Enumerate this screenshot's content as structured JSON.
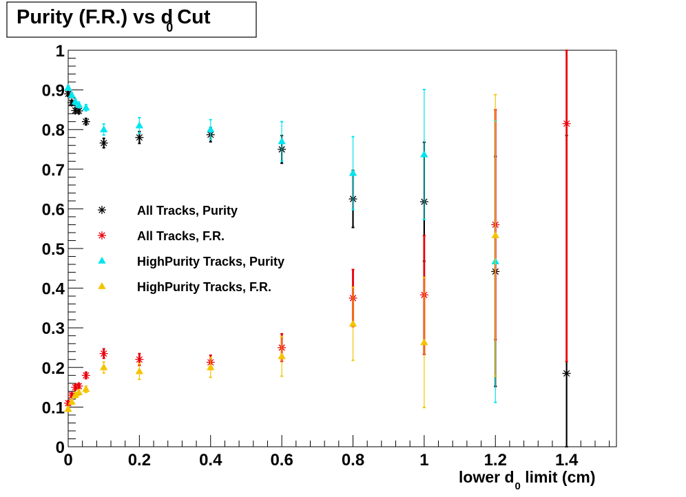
{
  "chart_data": {
    "type": "scatter",
    "title": {
      "main": "Purity (F.R.) vs d",
      "subscript": "0",
      "tail": "Cut"
    },
    "xlabel": {
      "main": "lower d",
      "subscript": "0",
      "tail": " limit (cm)"
    },
    "ylabel": "",
    "xlim": [
      0,
      1.54
    ],
    "ylim": [
      0,
      1
    ],
    "x_major_ticks": [
      0,
      0.2,
      0.4,
      0.6,
      0.8,
      1,
      1.2,
      1.4
    ],
    "x_tick_labels": [
      "0",
      "0.2",
      "0.4",
      "0.6",
      "0.8",
      "1",
      "1.2",
      "1.4"
    ],
    "y_major_ticks": [
      0,
      0.1,
      0.2,
      0.3,
      0.4,
      0.5,
      0.6,
      0.7,
      0.8,
      0.9,
      1
    ],
    "y_tick_labels": [
      "0",
      "0.1",
      "0.2",
      "0.3",
      "0.4",
      "0.5",
      "0.6",
      "0.7",
      "0.8",
      "0.9",
      "1"
    ],
    "grid": false,
    "legend_position": "center-left",
    "series": [
      {
        "name": "All Tracks, Purity",
        "marker": "star",
        "color": "#000000",
        "x": [
          0,
          0.01,
          0.02,
          0.03,
          0.05,
          0.1,
          0.2,
          0.4,
          0.6,
          0.8,
          1,
          1.2,
          1.4
        ],
        "y": [
          0.89,
          0.868,
          0.848,
          0.847,
          0.82,
          0.766,
          0.78,
          0.787,
          0.75,
          0.625,
          0.618,
          0.442,
          0.185
        ],
        "yerr": [
          0.006,
          0.006,
          0.007,
          0.007,
          0.008,
          0.012,
          0.015,
          0.018,
          0.035,
          0.072,
          0.15,
          0.29,
          0.6
        ]
      },
      {
        "name": "All Tracks, F.R.",
        "marker": "star",
        "color": "#e8000b",
        "x": [
          0,
          0.01,
          0.02,
          0.03,
          0.05,
          0.1,
          0.2,
          0.4,
          0.6,
          0.8,
          1,
          1.2,
          1.4
        ],
        "y": [
          0.11,
          0.13,
          0.15,
          0.153,
          0.18,
          0.235,
          0.22,
          0.213,
          0.25,
          0.375,
          0.383,
          0.56,
          0.815
        ],
        "yerr": [
          0.006,
          0.006,
          0.007,
          0.007,
          0.008,
          0.012,
          0.015,
          0.018,
          0.035,
          0.072,
          0.15,
          0.29,
          0.6
        ]
      },
      {
        "name": "HighPurity Tracks, Purity",
        "marker": "triangle",
        "color": "#00e5ee",
        "x": [
          0,
          0.01,
          0.02,
          0.03,
          0.05,
          0.1,
          0.2,
          0.4,
          0.6,
          0.8,
          1,
          1.2,
          1.4
        ],
        "y": [
          0.905,
          0.887,
          0.87,
          0.862,
          0.855,
          0.8,
          0.81,
          0.8,
          0.77,
          0.69,
          0.737,
          0.467,
          null
        ],
        "yerr": [
          0.006,
          0.006,
          0.007,
          0.007,
          0.008,
          0.014,
          0.02,
          0.025,
          0.05,
          0.092,
          0.164,
          0.355,
          0
        ]
      },
      {
        "name": "HighPurity Tracks, F.R.",
        "marker": "triangle",
        "color": "#f5c400",
        "x": [
          0,
          0.01,
          0.02,
          0.03,
          0.05,
          0.1,
          0.2,
          0.4,
          0.6,
          0.8,
          1,
          1.2,
          1.4
        ],
        "y": [
          0.095,
          0.113,
          0.13,
          0.137,
          0.145,
          0.2,
          0.19,
          0.2,
          0.228,
          0.31,
          0.263,
          0.533,
          null
        ],
        "yerr": [
          0.006,
          0.006,
          0.007,
          0.007,
          0.008,
          0.014,
          0.02,
          0.025,
          0.05,
          0.092,
          0.164,
          0.355,
          0
        ]
      }
    ]
  }
}
